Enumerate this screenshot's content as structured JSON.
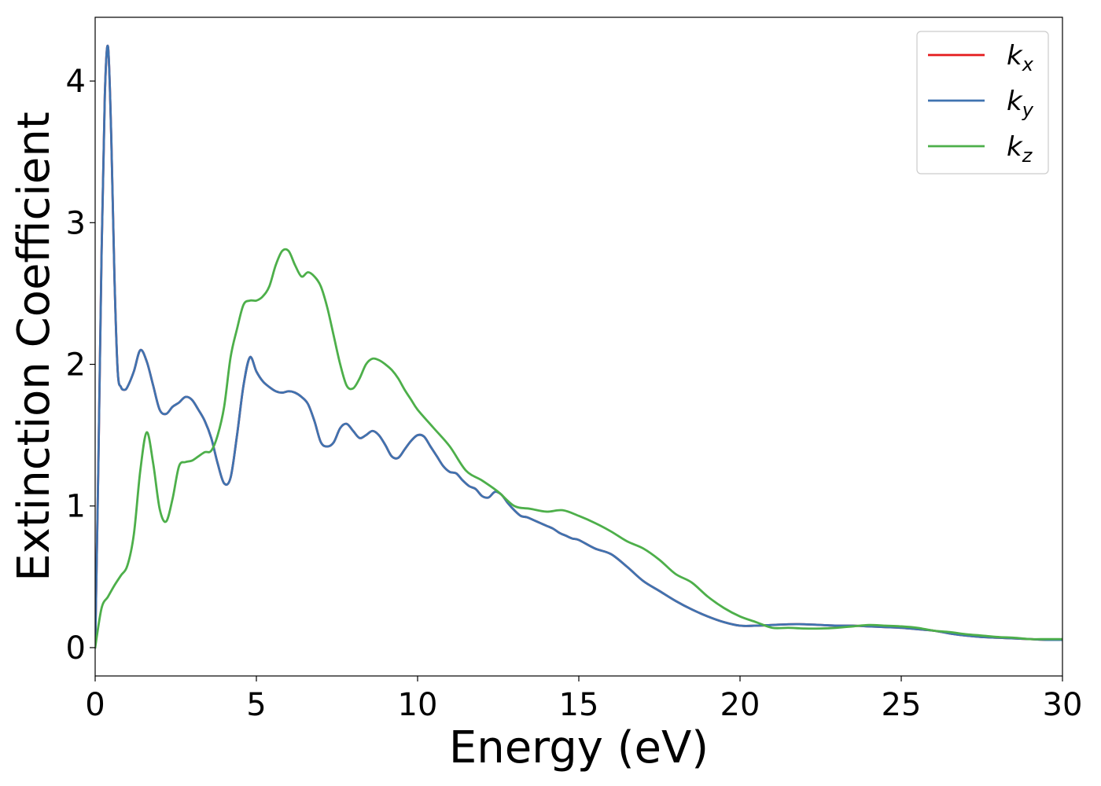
{
  "chart_data": {
    "type": "line",
    "title": "",
    "xlabel": "Energy (eV)",
    "ylabel": "Extinction Coefficient",
    "xlim": [
      0,
      30
    ],
    "ylim": [
      -0.2,
      4.45
    ],
    "xticks": [
      0,
      5,
      10,
      15,
      20,
      25,
      30
    ],
    "xtick_labels": [
      "0",
      "5",
      "10",
      "15",
      "20",
      "25",
      "30"
    ],
    "yticks": [
      0,
      1,
      2,
      3,
      4
    ],
    "ytick_labels": [
      "0",
      "1",
      "2",
      "3",
      "4"
    ],
    "grid": false,
    "legend_position": "top-right",
    "series": [
      {
        "name": "k_x",
        "legend_base": "k",
        "legend_sub": "x",
        "color": "#e41a1c",
        "x": [
          0,
          0.1,
          0.2,
          0.3,
          0.4,
          0.5,
          0.6,
          0.7,
          0.8,
          0.9,
          1.0,
          1.2,
          1.4,
          1.6,
          1.8,
          2.0,
          2.2,
          2.4,
          2.6,
          2.8,
          3.0,
          3.2,
          3.4,
          3.6,
          3.8,
          4.0,
          4.2,
          4.4,
          4.6,
          4.8,
          5.0,
          5.2,
          5.4,
          5.6,
          5.8,
          6.0,
          6.2,
          6.4,
          6.6,
          6.8,
          7.0,
          7.2,
          7.4,
          7.6,
          7.8,
          8.0,
          8.2,
          8.4,
          8.6,
          8.8,
          9.0,
          9.2,
          9.4,
          9.6,
          9.8,
          10.0,
          10.2,
          10.4,
          10.6,
          10.8,
          11.0,
          11.2,
          11.4,
          11.6,
          11.8,
          12.0,
          12.2,
          12.4,
          12.6,
          12.8,
          13.0,
          13.2,
          13.4,
          13.6,
          13.8,
          14.0,
          14.2,
          14.4,
          14.6,
          14.8,
          15.0,
          15.5,
          16.0,
          16.5,
          17.0,
          17.5,
          18.0,
          18.5,
          19.0,
          19.5,
          20.0,
          20.5,
          21.0,
          21.5,
          22.0,
          22.5,
          23.0,
          23.5,
          24.0,
          24.5,
          25.0,
          25.5,
          26.0,
          26.5,
          27.0,
          27.5,
          28.0,
          28.5,
          29.0,
          29.5,
          30.0
        ],
        "y": [
          0.0,
          1.3,
          2.8,
          3.9,
          4.24,
          3.6,
          2.6,
          1.95,
          1.84,
          1.82,
          1.84,
          1.95,
          2.1,
          2.02,
          1.85,
          1.68,
          1.65,
          1.7,
          1.73,
          1.77,
          1.75,
          1.68,
          1.6,
          1.48,
          1.3,
          1.16,
          1.2,
          1.5,
          1.85,
          2.05,
          1.95,
          1.88,
          1.84,
          1.81,
          1.8,
          1.81,
          1.8,
          1.77,
          1.72,
          1.6,
          1.45,
          1.42,
          1.45,
          1.55,
          1.58,
          1.53,
          1.48,
          1.5,
          1.53,
          1.5,
          1.43,
          1.35,
          1.34,
          1.4,
          1.46,
          1.5,
          1.49,
          1.42,
          1.35,
          1.28,
          1.24,
          1.23,
          1.18,
          1.14,
          1.12,
          1.07,
          1.06,
          1.1,
          1.08,
          1.02,
          0.97,
          0.93,
          0.92,
          0.9,
          0.88,
          0.86,
          0.84,
          0.81,
          0.79,
          0.77,
          0.76,
          0.7,
          0.66,
          0.57,
          0.47,
          0.4,
          0.33,
          0.27,
          0.22,
          0.18,
          0.155,
          0.155,
          0.16,
          0.165,
          0.165,
          0.16,
          0.155,
          0.155,
          0.15,
          0.145,
          0.14,
          0.13,
          0.12,
          0.1,
          0.085,
          0.075,
          0.07,
          0.065,
          0.06,
          0.055,
          0.055
        ]
      },
      {
        "name": "k_y",
        "legend_base": "k",
        "legend_sub": "y",
        "color": "#3f73b0",
        "x": [
          0,
          0.1,
          0.2,
          0.3,
          0.4,
          0.5,
          0.6,
          0.7,
          0.8,
          0.9,
          1.0,
          1.2,
          1.4,
          1.6,
          1.8,
          2.0,
          2.2,
          2.4,
          2.6,
          2.8,
          3.0,
          3.2,
          3.4,
          3.6,
          3.8,
          4.0,
          4.2,
          4.4,
          4.6,
          4.8,
          5.0,
          5.2,
          5.4,
          5.6,
          5.8,
          6.0,
          6.2,
          6.4,
          6.6,
          6.8,
          7.0,
          7.2,
          7.4,
          7.6,
          7.8,
          8.0,
          8.2,
          8.4,
          8.6,
          8.8,
          9.0,
          9.2,
          9.4,
          9.6,
          9.8,
          10.0,
          10.2,
          10.4,
          10.6,
          10.8,
          11.0,
          11.2,
          11.4,
          11.6,
          11.8,
          12.0,
          12.2,
          12.4,
          12.6,
          12.8,
          13.0,
          13.2,
          13.4,
          13.6,
          13.8,
          14.0,
          14.2,
          14.4,
          14.6,
          14.8,
          15.0,
          15.5,
          16.0,
          16.5,
          17.0,
          17.5,
          18.0,
          18.5,
          19.0,
          19.5,
          20.0,
          20.5,
          21.0,
          21.5,
          22.0,
          22.5,
          23.0,
          23.5,
          24.0,
          24.5,
          25.0,
          25.5,
          26.0,
          26.5,
          27.0,
          27.5,
          28.0,
          28.5,
          29.0,
          29.5,
          30.0
        ],
        "y": [
          0.0,
          1.3,
          2.8,
          3.9,
          4.24,
          3.6,
          2.6,
          1.95,
          1.84,
          1.82,
          1.84,
          1.95,
          2.1,
          2.02,
          1.85,
          1.68,
          1.65,
          1.7,
          1.73,
          1.77,
          1.75,
          1.68,
          1.6,
          1.48,
          1.3,
          1.16,
          1.2,
          1.5,
          1.85,
          2.05,
          1.95,
          1.88,
          1.84,
          1.81,
          1.8,
          1.81,
          1.8,
          1.77,
          1.72,
          1.6,
          1.45,
          1.42,
          1.45,
          1.55,
          1.58,
          1.53,
          1.48,
          1.5,
          1.53,
          1.5,
          1.43,
          1.35,
          1.34,
          1.4,
          1.46,
          1.5,
          1.49,
          1.42,
          1.35,
          1.28,
          1.24,
          1.23,
          1.18,
          1.14,
          1.12,
          1.07,
          1.06,
          1.1,
          1.08,
          1.02,
          0.97,
          0.93,
          0.92,
          0.9,
          0.88,
          0.86,
          0.84,
          0.81,
          0.79,
          0.77,
          0.76,
          0.7,
          0.66,
          0.57,
          0.47,
          0.4,
          0.33,
          0.27,
          0.22,
          0.18,
          0.155,
          0.155,
          0.16,
          0.165,
          0.165,
          0.16,
          0.155,
          0.155,
          0.15,
          0.145,
          0.14,
          0.13,
          0.12,
          0.1,
          0.085,
          0.075,
          0.07,
          0.065,
          0.06,
          0.055,
          0.055
        ]
      },
      {
        "name": "k_z",
        "legend_base": "k",
        "legend_sub": "z",
        "color": "#4daf4a",
        "x": [
          0,
          0.2,
          0.4,
          0.6,
          0.8,
          1.0,
          1.2,
          1.4,
          1.6,
          1.8,
          2.0,
          2.2,
          2.4,
          2.6,
          2.8,
          3.0,
          3.2,
          3.4,
          3.6,
          3.8,
          4.0,
          4.2,
          4.4,
          4.6,
          4.8,
          5.0,
          5.2,
          5.4,
          5.6,
          5.8,
          6.0,
          6.2,
          6.4,
          6.6,
          6.8,
          7.0,
          7.2,
          7.4,
          7.6,
          7.8,
          8.0,
          8.2,
          8.4,
          8.6,
          8.8,
          9.0,
          9.2,
          9.4,
          9.6,
          9.8,
          10.0,
          10.5,
          11.0,
          11.5,
          12.0,
          12.5,
          13.0,
          13.5,
          14.0,
          14.5,
          15.0,
          15.5,
          16.0,
          16.5,
          17.0,
          17.5,
          18.0,
          18.5,
          19.0,
          19.5,
          20.0,
          20.5,
          21.0,
          21.5,
          22.0,
          22.5,
          23.0,
          23.5,
          24.0,
          24.5,
          25.0,
          25.5,
          26.0,
          26.5,
          27.0,
          27.5,
          28.0,
          28.5,
          29.0,
          29.5,
          30.0
        ],
        "y": [
          0.0,
          0.28,
          0.36,
          0.44,
          0.51,
          0.58,
          0.8,
          1.25,
          1.52,
          1.3,
          0.98,
          0.89,
          1.05,
          1.28,
          1.31,
          1.32,
          1.35,
          1.38,
          1.39,
          1.5,
          1.7,
          2.05,
          2.25,
          2.42,
          2.45,
          2.45,
          2.48,
          2.55,
          2.7,
          2.8,
          2.8,
          2.7,
          2.62,
          2.65,
          2.62,
          2.55,
          2.4,
          2.2,
          2.0,
          1.85,
          1.83,
          1.9,
          2.0,
          2.04,
          2.03,
          2.0,
          1.96,
          1.9,
          1.82,
          1.75,
          1.68,
          1.55,
          1.42,
          1.25,
          1.18,
          1.1,
          1.0,
          0.98,
          0.96,
          0.97,
          0.93,
          0.88,
          0.82,
          0.75,
          0.7,
          0.62,
          0.52,
          0.46,
          0.36,
          0.28,
          0.22,
          0.18,
          0.14,
          0.14,
          0.135,
          0.135,
          0.14,
          0.15,
          0.16,
          0.155,
          0.15,
          0.14,
          0.12,
          0.11,
          0.095,
          0.085,
          0.075,
          0.07,
          0.06,
          0.06,
          0.06
        ]
      }
    ]
  }
}
